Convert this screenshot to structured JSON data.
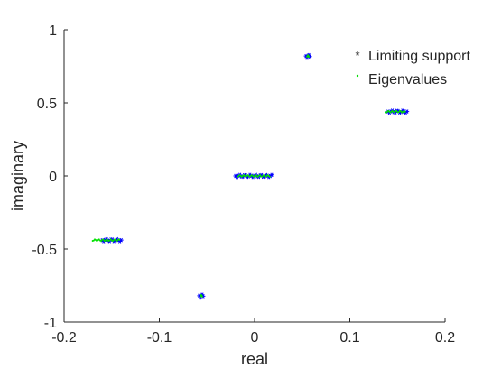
{
  "chart_data": {
    "type": "scatter",
    "xlabel": "real",
    "ylabel": "imaginary",
    "xlim": [
      -0.2,
      0.2
    ],
    "ylim": [
      -1,
      1
    ],
    "x_ticks": [
      -0.2,
      -0.1,
      0,
      0.1,
      0.2
    ],
    "x_tick_labels": [
      "-0.2",
      "-0.1",
      "0",
      "0.1",
      "0.2"
    ],
    "y_ticks": [
      -1,
      -0.5,
      0,
      0.5,
      1
    ],
    "y_tick_labels": [
      "-1",
      "-0.5",
      "0",
      "0.5",
      "1"
    ],
    "grid": false,
    "legend_position": "top-right",
    "series": [
      {
        "name": "Limiting support",
        "marker": "*",
        "color": "#0000ff",
        "clusters": [
          {
            "x_range": [
              -0.16,
              -0.14
            ],
            "y": -0.44
          },
          {
            "x_range": [
              -0.058,
              -0.054
            ],
            "y": -0.82
          },
          {
            "x_range": [
              -0.02,
              0.018
            ],
            "y": 0.0
          },
          {
            "x_range": [
              0.054,
              0.058
            ],
            "y": 0.82
          },
          {
            "x_range": [
              0.14,
              0.16
            ],
            "y": 0.44
          }
        ]
      },
      {
        "name": "Eigenvalues",
        "marker": ".",
        "color": "#00e000",
        "clusters": [
          {
            "x_range": [
              -0.17,
              -0.142
            ],
            "y": -0.44
          },
          {
            "x_range": [
              -0.057,
              -0.055
            ],
            "y": -0.82
          },
          {
            "x_range": [
              -0.018,
              0.016
            ],
            "y": 0.0
          },
          {
            "x_range": [
              0.055,
              0.057
            ],
            "y": 0.82
          },
          {
            "x_range": [
              0.138,
              0.158
            ],
            "y": 0.44
          }
        ]
      }
    ]
  }
}
